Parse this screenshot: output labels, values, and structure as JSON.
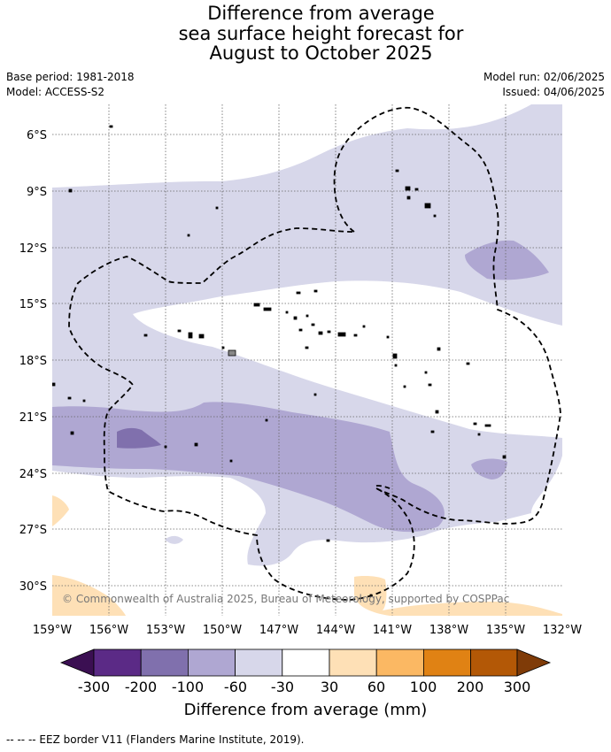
{
  "header": {
    "title_lines": [
      "Difference from average",
      "sea surface height forecast for",
      "August to October 2025"
    ],
    "base_period": "Base period: 1981-2018",
    "model": "Model: ACCESS-S2",
    "model_run": "Model run: 02/06/2025",
    "issued": "Issued: 04/06/2025"
  },
  "map": {
    "lat_labels": [
      "6°S",
      "9°S",
      "12°S",
      "15°S",
      "18°S",
      "21°S",
      "24°S",
      "27°S",
      "30°S"
    ],
    "lon_labels": [
      "159°W",
      "156°W",
      "153°W",
      "150°W",
      "147°W",
      "144°W",
      "141°W",
      "138°W",
      "135°W",
      "132°W"
    ],
    "copyright": "© Commonwealth of Australia 2025, Bureau of Meteorology, supported by COSPPac",
    "grid": true
  },
  "colorbar": {
    "title": "Difference from average (mm)",
    "tick_labels": [
      "-300",
      "-200",
      "-100",
      "-60",
      "-30",
      "30",
      "60",
      "100",
      "200",
      "300"
    ],
    "colors": {
      "below": "#3b0f52",
      "bins": [
        "#5b2a86",
        "#8070ad",
        "#afa7d2",
        "#d7d7ea",
        "#ffffff",
        "#fee0b6",
        "#fbb863",
        "#e08214",
        "#b35806"
      ],
      "above": "#7f3b08"
    }
  },
  "footer": {
    "legend_text": "--  --  -- EEZ border V11 (Flanders Marine Institute, 2019)."
  }
}
